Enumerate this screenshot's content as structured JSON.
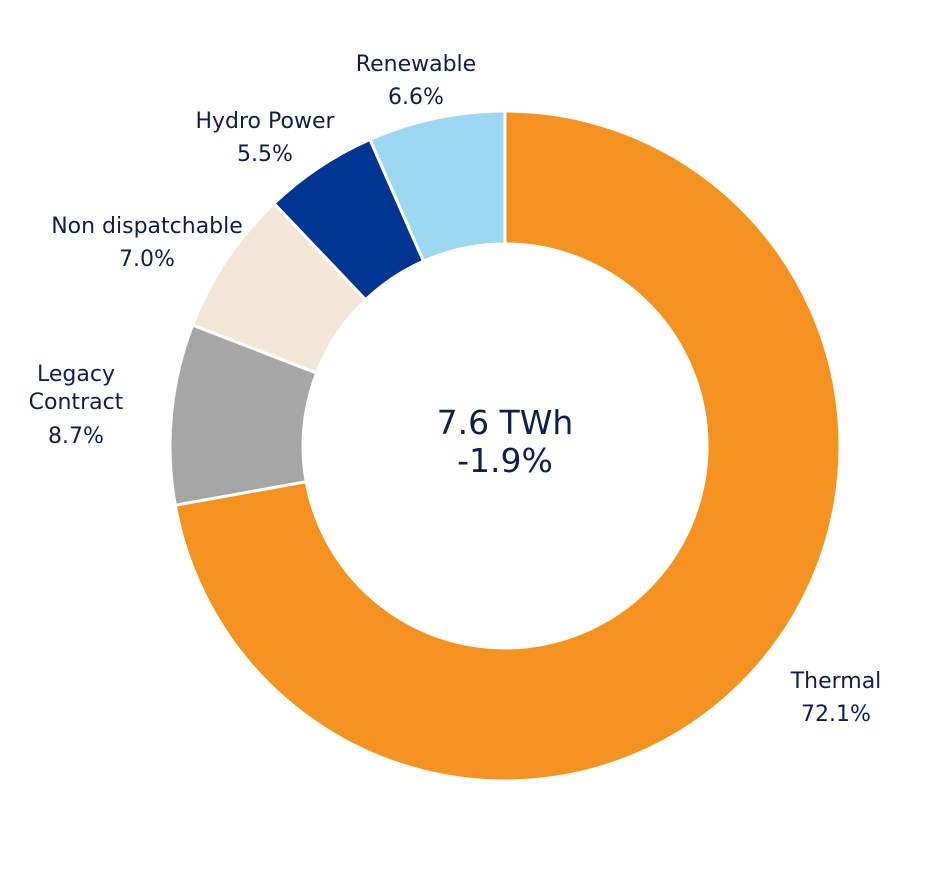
{
  "chart_data": {
    "type": "pie",
    "donut": true,
    "center_text": [
      "7.6 TWh",
      "-1.9%"
    ],
    "series": [
      {
        "name": "Thermal",
        "label_lines": [
          "Thermal"
        ],
        "value": 72.1,
        "value_label": "72.1%",
        "color": "#f59321"
      },
      {
        "name": "Legacy Contract",
        "label_lines": [
          "Legacy",
          "Contract"
        ],
        "value": 8.7,
        "value_label": "8.7%",
        "color": "#a6a6a6"
      },
      {
        "name": "Non dispatchable",
        "label_lines": [
          "Non dispatchable"
        ],
        "value": 7.0,
        "value_label": "7.0%",
        "color": "#f2e7d8"
      },
      {
        "name": "Hydro Power",
        "label_lines": [
          "Hydro Power"
        ],
        "value": 5.5,
        "value_label": "5.5%",
        "color": "#003591"
      },
      {
        "name": "Renewable",
        "label_lines": [
          "Renewable"
        ],
        "value": 6.6,
        "value_label": "6.6%",
        "color": "#9cd8ef"
      }
    ]
  }
}
